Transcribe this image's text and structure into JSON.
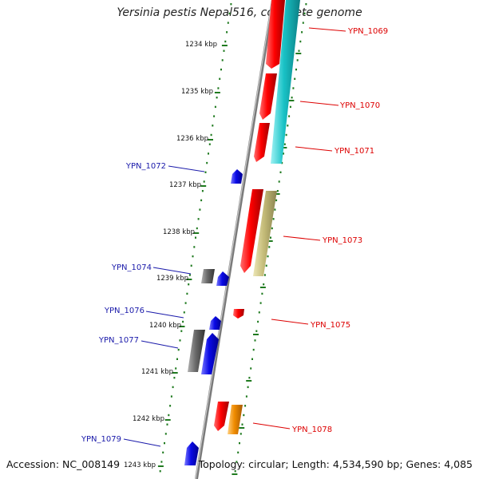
{
  "title": "Yersinia pestis Nepal516, complete genome",
  "footer": {
    "accession": "Accession: NC_008149",
    "summary": "Topology: circular; Length: 4,534,590 bp; Genes: 4,085"
  },
  "colors": {
    "backbone": "#8c8c8c",
    "tick": "#1f7a1f",
    "label_red": "#dd0000",
    "label_blue": "#1a1aaa",
    "gene_red": "#e60000",
    "gene_cyan": "#19c2c6",
    "gene_khaki": "#c4bb78",
    "gene_blue": "#0a0ae6",
    "gene_gray": "#6a6a6a",
    "gene_orange": "#f08c00"
  },
  "scale_labels": [
    "1234 kbp",
    "1235 kbp",
    "1236 kbp",
    "1237 kbp",
    "1238 kbp",
    "1239 kbp",
    "1240 kbp",
    "1241 kbp",
    "1242 kbp",
    "1243 kbp"
  ],
  "gene_labels_right": [
    "YPN_1069",
    "YPN_1070",
    "YPN_1071",
    "YPN_1073",
    "YPN_1075",
    "YPN_1078"
  ],
  "gene_labels_left": [
    "YPN_1072",
    "YPN_1074",
    "YPN_1076",
    "YPN_1077",
    "YPN_1079"
  ]
}
